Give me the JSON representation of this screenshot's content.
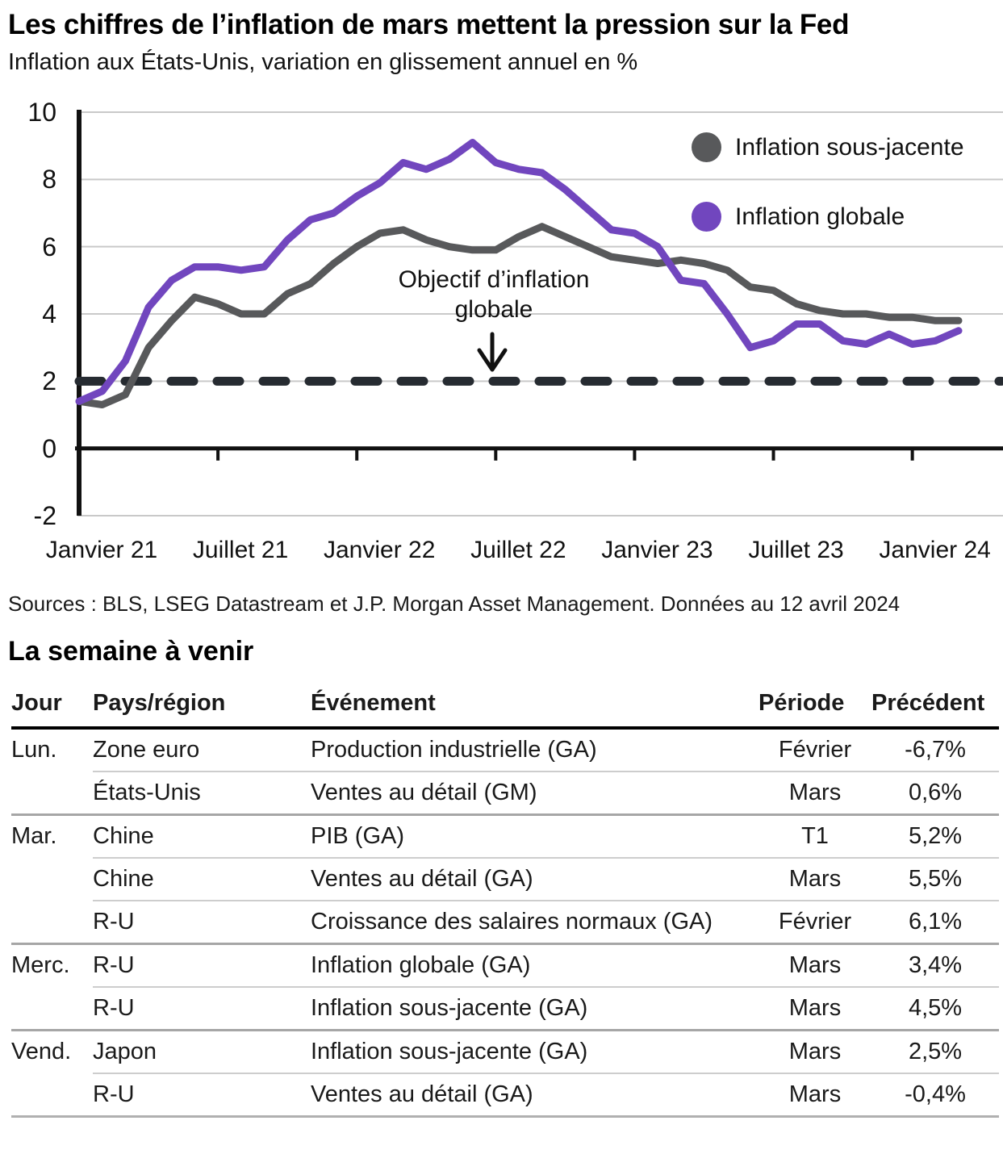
{
  "chart_data": {
    "type": "line",
    "title": "Les chiffres de l’inflation de mars mettent la pression sur la Fed",
    "subtitle": "Inflation aux États-Unis, variation en glissement annuel en %",
    "ylim": [
      -2,
      10
    ],
    "y_ticks": [
      10,
      8,
      6,
      4,
      2,
      0,
      -2
    ],
    "x_labels": [
      "Janvier 21",
      "Juillet 21",
      "Janvier 22",
      "Juillet 22",
      "Janvier 23",
      "Juillet 23",
      "Janvier 24"
    ],
    "x_label_month_index": [
      0,
      6,
      12,
      18,
      24,
      30,
      36
    ],
    "x_range_months": "Janvier 2021 - Mars 2024",
    "grid": "horizontal",
    "legend_position": "upper-right",
    "target_line": {
      "value": 2,
      "color": "#262B31",
      "label_line1": "Objectif d’inflation",
      "label_line2": "globale"
    },
    "series": [
      {
        "name": "Inflation sous-jacente",
        "color": "#58595B",
        "values": [
          1.4,
          1.3,
          1.6,
          3.0,
          3.8,
          4.5,
          4.3,
          4.0,
          4.0,
          4.6,
          4.9,
          5.5,
          6.0,
          6.4,
          6.5,
          6.2,
          6.0,
          5.9,
          5.9,
          6.3,
          6.6,
          6.3,
          6.0,
          5.7,
          5.6,
          5.5,
          5.6,
          5.5,
          5.3,
          4.8,
          4.7,
          4.3,
          4.1,
          4.0,
          4.0,
          3.9,
          3.9,
          3.8,
          3.8
        ]
      },
      {
        "name": "Inflation globale",
        "color": "#7146BE",
        "values": [
          1.4,
          1.7,
          2.6,
          4.2,
          5.0,
          5.4,
          5.4,
          5.3,
          5.4,
          6.2,
          6.8,
          7.0,
          7.5,
          7.9,
          8.5,
          8.3,
          8.6,
          9.1,
          8.5,
          8.3,
          8.2,
          7.7,
          7.1,
          6.5,
          6.4,
          6.0,
          5.0,
          4.9,
          4.0,
          3.0,
          3.2,
          3.7,
          3.7,
          3.2,
          3.1,
          3.4,
          3.1,
          3.2,
          3.5
        ]
      }
    ]
  },
  "sources": "Sources : BLS, LSEG Datastream et J.P. Morgan Asset Management. Données au 12 avril 2024",
  "section_title": "La semaine à venir",
  "table": {
    "headers": [
      "Jour",
      "Pays/région",
      "Événement",
      "Période",
      "Précédent"
    ],
    "rows": [
      {
        "day": "Lun.",
        "region": "Zone euro",
        "event": "Production industrielle (GA)",
        "period": "Février",
        "previous": "-6,7%"
      },
      {
        "day": "",
        "region": "États-Unis",
        "event": "Ventes au détail (GM)",
        "period": "Mars",
        "previous": "0,6%"
      },
      {
        "day": "Mar.",
        "region": "Chine",
        "event": "PIB (GA)",
        "period": "T1",
        "previous": "5,2%"
      },
      {
        "day": "",
        "region": "Chine",
        "event": "Ventes au détail (GA)",
        "period": "Mars",
        "previous": "5,5%"
      },
      {
        "day": "",
        "region": "R-U",
        "event": "Croissance des salaires normaux (GA)",
        "period": "Février",
        "previous": "6,1%"
      },
      {
        "day": "Merc.",
        "region": "R-U",
        "event": "Inflation globale (GA)",
        "period": "Mars",
        "previous": "3,4%"
      },
      {
        "day": "",
        "region": "R-U",
        "event": "Inflation sous-jacente (GA)",
        "period": "Mars",
        "previous": "4,5%"
      },
      {
        "day": "Vend.",
        "region": "Japon",
        "event": "Inflation sous-jacente (GA)",
        "period": "Mars",
        "previous": "2,5%"
      },
      {
        "day": "",
        "region": "R-U",
        "event": "Ventes au détail (GA)",
        "period": "Mars",
        "previous": "-0,4%"
      }
    ]
  }
}
